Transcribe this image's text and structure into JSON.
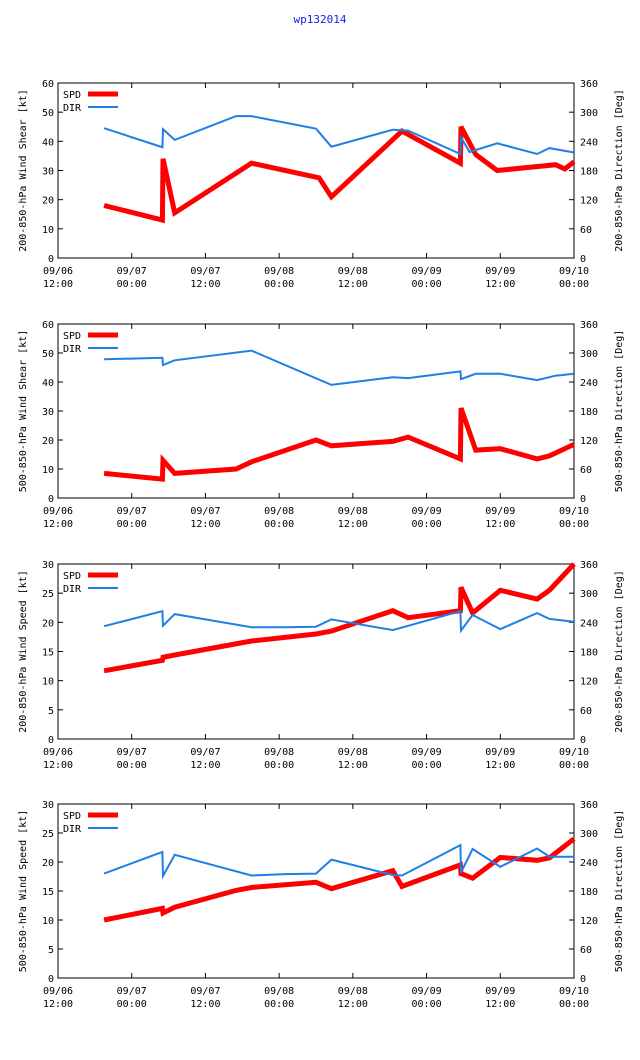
{
  "page": {
    "title": "wp132014"
  },
  "colors": {
    "spd": "#ff0000",
    "dir": "#1f7fe8",
    "title": "#1a1aee"
  },
  "common": {
    "x_ticks": [
      {
        "t": 0,
        "line1": "09/06",
        "line2": "12:00"
      },
      {
        "t": 12,
        "line1": "09/07",
        "line2": "00:00"
      },
      {
        "t": 24,
        "line1": "09/07",
        "line2": "12:00"
      },
      {
        "t": 36,
        "line1": "09/08",
        "line2": "00:00"
      },
      {
        "t": 48,
        "line1": "09/08",
        "line2": "12:00"
      },
      {
        "t": 60,
        "line1": "09/09",
        "line2": "00:00"
      },
      {
        "t": 72,
        "line1": "09/09",
        "line2": "12:00"
      },
      {
        "t": 84,
        "line1": "09/10",
        "line2": "00:00"
      }
    ],
    "y2_ticks": [
      0,
      60,
      120,
      180,
      240,
      300,
      360
    ]
  },
  "chart_data": [
    {
      "type": "line",
      "title": "",
      "xlabel": "",
      "ylabel": "200-850-hPa Wind Shear [kt]",
      "y2label": "200-850-hPa Direction [Deg]",
      "xlim": [
        0,
        84
      ],
      "ylim": [
        0,
        60
      ],
      "y2lim": [
        0,
        360
      ],
      "y_ticks": [
        0,
        10,
        20,
        30,
        40,
        50,
        60
      ],
      "legend": [
        "SPD",
        "DIR"
      ],
      "series": [
        {
          "name": "SPD",
          "axis": "left",
          "x": [
            7.5,
            17,
            17.1,
            19,
            31.5,
            42.5,
            44.5,
            56,
            65.5,
            65.6,
            68,
            71.5,
            81,
            82.5,
            84
          ],
          "values": [
            18,
            13,
            34,
            15.5,
            32.5,
            27.5,
            21,
            43.5,
            32.5,
            45,
            35.5,
            30,
            32,
            30.5,
            33
          ]
        },
        {
          "name": "DIR",
          "axis": "right",
          "x": [
            7.5,
            17,
            17.1,
            19,
            29,
            31.5,
            42,
            44.5,
            54.5,
            57,
            65.5,
            65.6,
            67,
            71.5,
            78,
            80,
            84
          ],
          "values": [
            267,
            228,
            265,
            243,
            292,
            292,
            266,
            229,
            264,
            262,
            214,
            248,
            218,
            236,
            214,
            226,
            217
          ]
        }
      ]
    },
    {
      "type": "line",
      "title": "",
      "xlabel": "",
      "ylabel": "500-850-hPa Wind Shear [kt]",
      "y2label": "500-850-hPa Direction [Deg]",
      "xlim": [
        0,
        84
      ],
      "ylim": [
        0,
        60
      ],
      "y2lim": [
        0,
        360
      ],
      "y_ticks": [
        0,
        10,
        20,
        30,
        40,
        50,
        60
      ],
      "legend": [
        "SPD",
        "DIR"
      ],
      "series": [
        {
          "name": "SPD",
          "axis": "left",
          "x": [
            7.5,
            17,
            17.1,
            19,
            29,
            31.5,
            42,
            44.5,
            54.5,
            57,
            65.5,
            65.6,
            68,
            72,
            78,
            80,
            84
          ],
          "values": [
            8.5,
            6.5,
            13,
            8.5,
            10,
            12.5,
            20,
            18,
            19.5,
            21,
            13.5,
            31,
            16.5,
            17,
            13.5,
            14.5,
            18.5
          ]
        },
        {
          "name": "DIR",
          "axis": "right",
          "x": [
            7.5,
            17,
            17.1,
            19,
            31.5,
            44.5,
            54.5,
            57,
            65.5,
            65.6,
            68,
            72,
            78,
            81,
            84
          ],
          "values": [
            287,
            290,
            275,
            285,
            305,
            234,
            250,
            248,
            262,
            246,
            257,
            257,
            244,
            253,
            257
          ]
        }
      ]
    },
    {
      "type": "line",
      "title": "",
      "xlabel": "",
      "ylabel": "200-850-hPa Wind Speed [kt]",
      "y2label": "200-850-hPa Direction [Deg]",
      "xlim": [
        0,
        84
      ],
      "ylim": [
        0,
        30
      ],
      "y2lim": [
        0,
        360
      ],
      "y_ticks": [
        0,
        5,
        10,
        15,
        20,
        25,
        30
      ],
      "legend": [
        "SPD",
        "DIR"
      ],
      "series": [
        {
          "name": "SPD",
          "axis": "left",
          "x": [
            7.5,
            17,
            17.1,
            19,
            31.5,
            42,
            44.5,
            54.5,
            57,
            65.5,
            65.6,
            67.5,
            72,
            78,
            80,
            84
          ],
          "values": [
            11.7,
            13.5,
            14,
            14.4,
            16.8,
            18,
            18.5,
            22,
            20.8,
            22,
            26,
            21.6,
            25.5,
            24,
            25.5,
            30
          ]
        },
        {
          "name": "DIR",
          "axis": "right",
          "x": [
            7.5,
            17,
            17.1,
            19,
            31.5,
            37,
            42,
            44.5,
            54.5,
            65.5,
            65.6,
            67.5,
            72,
            78,
            80,
            84
          ],
          "values": [
            232,
            263,
            233,
            257,
            230,
            230,
            231,
            246,
            224,
            263,
            223,
            255,
            226,
            259,
            247,
            241
          ]
        }
      ]
    },
    {
      "type": "line",
      "title": "",
      "xlabel": "",
      "ylabel": "500-850-hPa Wind Speed [kt]",
      "y2label": "500-850-hPa Direction [Deg]",
      "xlim": [
        0,
        84
      ],
      "ylim": [
        0,
        30
      ],
      "y2lim": [
        0,
        360
      ],
      "y_ticks": [
        0,
        5,
        10,
        15,
        20,
        25,
        30
      ],
      "legend": [
        "SPD",
        "DIR"
      ],
      "series": [
        {
          "name": "SPD",
          "axis": "left",
          "x": [
            7.5,
            17,
            17.1,
            19,
            29,
            31.5,
            42,
            44.5,
            54.5,
            56,
            65.5,
            65.6,
            67.5,
            72,
            78,
            80,
            84
          ],
          "values": [
            10,
            12,
            11.2,
            12.2,
            15.1,
            15.6,
            16.5,
            15.4,
            18.5,
            15.8,
            19.5,
            18,
            17.2,
            20.8,
            20.3,
            20.7,
            24
          ]
        },
        {
          "name": "DIR",
          "axis": "right",
          "x": [
            7.5,
            17,
            17.1,
            19,
            31.5,
            37,
            42,
            44.5,
            54.5,
            56,
            65.5,
            65.6,
            67.5,
            72,
            78,
            80,
            84
          ],
          "values": [
            216,
            261,
            211,
            255,
            212,
            215,
            216,
            245,
            213,
            212,
            275,
            218,
            267,
            230,
            268,
            251,
            251
          ]
        }
      ]
    }
  ]
}
